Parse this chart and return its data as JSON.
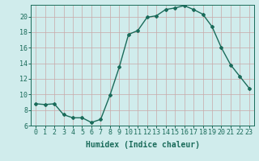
{
  "x": [
    0,
    1,
    2,
    3,
    4,
    5,
    6,
    7,
    8,
    9,
    10,
    11,
    12,
    13,
    14,
    15,
    16,
    17,
    18,
    19,
    20,
    21,
    22,
    23
  ],
  "y": [
    8.8,
    8.7,
    8.8,
    7.4,
    7.0,
    7.0,
    6.4,
    6.8,
    9.9,
    13.5,
    17.7,
    18.2,
    19.9,
    20.1,
    20.9,
    21.1,
    21.4,
    20.9,
    20.3,
    18.7,
    16.0,
    13.8,
    12.3,
    10.8
  ],
  "line_color": "#1a6b5a",
  "marker": "D",
  "marker_size": 2.0,
  "bg_color": "#d0ecec",
  "grid_color": "#c8a8a8",
  "xlabel": "Humidex (Indice chaleur)",
  "xlim": [
    -0.5,
    23.5
  ],
  "ylim": [
    6,
    21.5
  ],
  "yticks": [
    6,
    8,
    10,
    12,
    14,
    16,
    18,
    20
  ],
  "xticks": [
    0,
    1,
    2,
    3,
    4,
    5,
    6,
    7,
    8,
    9,
    10,
    11,
    12,
    13,
    14,
    15,
    16,
    17,
    18,
    19,
    20,
    21,
    22,
    23
  ],
  "xlabel_fontsize": 7,
  "tick_fontsize": 6,
  "label_color": "#1a6b5a",
  "line_width": 1.0
}
